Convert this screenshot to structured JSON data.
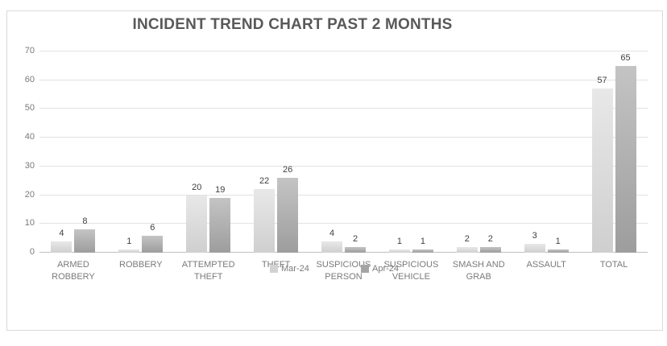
{
  "chart_data": {
    "type": "bar",
    "title": "INCIDENT TREND CHART PAST 2 MONTHS",
    "categories": [
      "ARMED ROBBERY",
      "ROBBERY",
      "ATTEMPTED THEFT",
      "THEFT",
      "SUSPICIOUS PERSON",
      "SUSPICIOUS VEHICLE",
      "SMASH AND GRAB",
      "ASSAULT",
      "TOTAL"
    ],
    "series": [
      {
        "name": "Mar-24",
        "values": [
          4,
          1,
          20,
          22,
          4,
          1,
          2,
          3,
          57
        ],
        "color": "#d2d2d2",
        "color_top": "#e8e8e8",
        "color_bottom": "#cfcfcf"
      },
      {
        "name": "Apr-24",
        "values": [
          8,
          6,
          19,
          26,
          2,
          1,
          2,
          1,
          65
        ],
        "color": "#a4a4a4",
        "color_top": "#c4c4c4",
        "color_bottom": "#9d9d9d"
      }
    ],
    "xlabel": "",
    "ylabel": "",
    "ylim": [
      0,
      70
    ],
    "yticks": [
      0,
      10,
      20,
      30,
      40,
      50,
      60,
      70
    ],
    "grid": true,
    "legend_position": "bottom-center",
    "data_labels": true
  },
  "colors": {
    "title": "#595959",
    "axis_label": "#7a7a7a",
    "data_label": "#404040",
    "gridline": "#e2e2e2",
    "axis_line": "#bfbfbf",
    "frame_border": "#d9d9d9",
    "background": "#ffffff"
  }
}
